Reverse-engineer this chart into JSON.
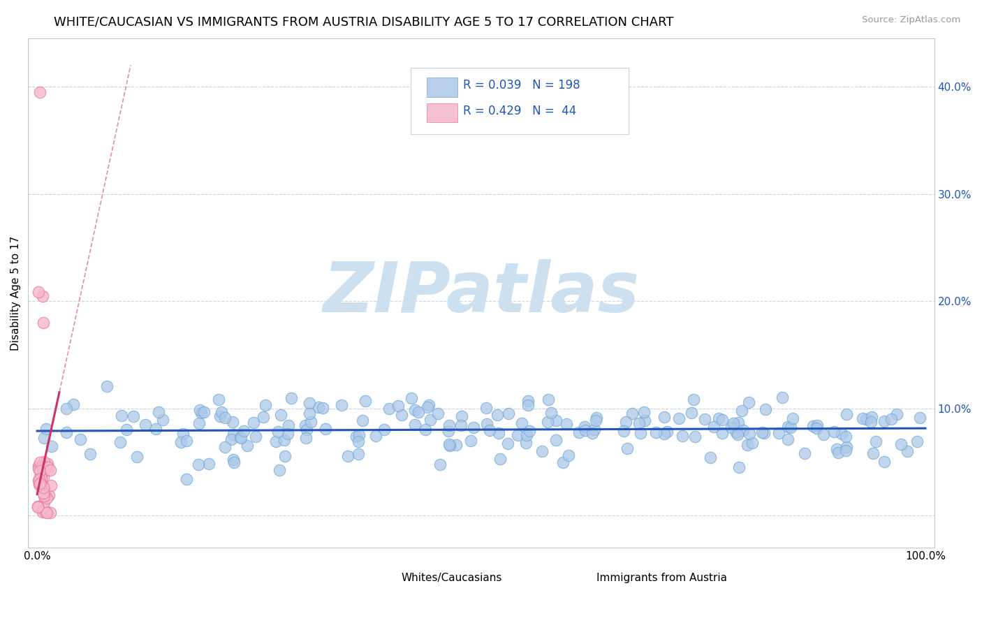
{
  "title": "WHITE/CAUCASIAN VS IMMIGRANTS FROM AUSTRIA DISABILITY AGE 5 TO 17 CORRELATION CHART",
  "source": "Source: ZipAtlas.com",
  "ylabel": "Disability Age 5 to 17",
  "watermark": "ZIPatlas",
  "xlim": [
    -0.01,
    1.01
  ],
  "ylim": [
    -0.03,
    0.445
  ],
  "xticks": [
    0.0,
    0.25,
    0.5,
    0.75,
    1.0
  ],
  "xticklabels": [
    "0.0%",
    "",
    "",
    "",
    "100.0%"
  ],
  "yticks": [
    0.0,
    0.1,
    0.2,
    0.3,
    0.4
  ],
  "yticklabels_right": [
    "",
    "10.0%",
    "20.0%",
    "30.0%",
    "40.0%"
  ],
  "blue_color": "#adc8e8",
  "blue_edge": "#6ea8d8",
  "pink_color": "#f5b8cc",
  "pink_edge": "#e87898",
  "blue_line_color": "#2255bb",
  "pink_line_color": "#cc3366",
  "legend_blue_fill": "#b8d0ec",
  "legend_pink_fill": "#f5c0d0",
  "legend_text_color": "#2255bb",
  "R_blue": 0.039,
  "N_blue": 198,
  "R_pink": 0.429,
  "N_pink": 44,
  "grid_color": "#c8d4e8",
  "title_fontsize": 13,
  "axis_label_fontsize": 11,
  "tick_fontsize": 11,
  "watermark_fontsize": 72,
  "watermark_color": "#cce0f0",
  "blue_trend_intercept": 0.079,
  "blue_trend_slope": 0.0025,
  "pink_trend_intercept": 0.02,
  "pink_trend_slope": 3.8
}
